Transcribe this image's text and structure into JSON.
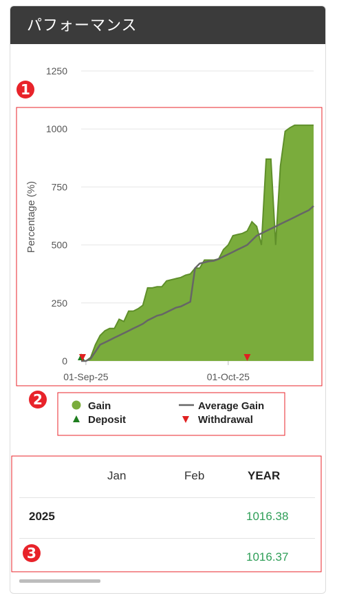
{
  "header": {
    "title": "パフォーマンス"
  },
  "colors": {
    "gain_fill": "#7aac3c",
    "gain_line": "#5f8f2a",
    "average_line": "#666666",
    "deposit_marker": "#1e7d1e",
    "withdrawal_marker": "#e02020",
    "annotation": "#e8232a",
    "positive_value": "#2e9e57",
    "header_bg": "#3b3b3b"
  },
  "chart_data": {
    "type": "area",
    "ylabel": "Percentage (%)",
    "ylim": [
      0,
      1250
    ],
    "yticks": [
      "0",
      "250",
      "500",
      "750",
      "1000",
      "1250"
    ],
    "xticks": [
      "01-Sep-25",
      "01-Oct-25"
    ],
    "x_range": [
      "2025-08-31",
      "2025-10-19"
    ],
    "grid": true,
    "legend_position": "bottom",
    "series": [
      {
        "name": "Gain",
        "style": "area",
        "x": [
          "2025-08-31",
          "2025-09-01",
          "2025-09-02",
          "2025-09-03",
          "2025-09-04",
          "2025-09-05",
          "2025-09-06",
          "2025-09-07",
          "2025-09-08",
          "2025-09-09",
          "2025-09-10",
          "2025-09-11",
          "2025-09-12",
          "2025-09-13",
          "2025-09-14",
          "2025-09-15",
          "2025-09-16",
          "2025-09-17",
          "2025-09-18",
          "2025-09-19",
          "2025-09-20",
          "2025-09-21",
          "2025-09-22",
          "2025-09-23",
          "2025-09-24",
          "2025-09-25",
          "2025-09-26",
          "2025-09-27",
          "2025-09-28",
          "2025-09-29",
          "2025-09-30",
          "2025-10-01",
          "2025-10-02",
          "2025-10-03",
          "2025-10-04",
          "2025-10-05",
          "2025-10-06",
          "2025-10-07",
          "2025-10-08",
          "2025-10-09",
          "2025-10-10",
          "2025-10-11",
          "2025-10-12",
          "2025-10-13",
          "2025-10-14",
          "2025-10-15",
          "2025-10-16",
          "2025-10-17",
          "2025-10-18",
          "2025-10-19"
        ],
        "values": [
          0,
          0,
          15,
          70,
          110,
          130,
          140,
          140,
          180,
          170,
          215,
          215,
          225,
          240,
          315,
          315,
          320,
          320,
          345,
          350,
          355,
          360,
          370,
          375,
          400,
          400,
          435,
          435,
          435,
          440,
          480,
          500,
          540,
          545,
          550,
          560,
          600,
          580,
          500,
          870,
          870,
          500,
          840,
          990,
          1005,
          1016,
          1016,
          1016,
          1016,
          1016
        ]
      },
      {
        "name": "Average Gain",
        "style": "line",
        "x": [
          "2025-08-31",
          "2025-09-01",
          "2025-09-02",
          "2025-09-03",
          "2025-09-04",
          "2025-09-05",
          "2025-09-06",
          "2025-09-07",
          "2025-09-08",
          "2025-09-09",
          "2025-09-10",
          "2025-09-11",
          "2025-09-12",
          "2025-09-13",
          "2025-09-14",
          "2025-09-15",
          "2025-09-16",
          "2025-09-17",
          "2025-09-18",
          "2025-09-19",
          "2025-09-20",
          "2025-09-21",
          "2025-09-22",
          "2025-09-23",
          "2025-09-24",
          "2025-09-25",
          "2025-09-26",
          "2025-09-27",
          "2025-09-28",
          "2025-09-29",
          "2025-09-30",
          "2025-10-01",
          "2025-10-02",
          "2025-10-03",
          "2025-10-04",
          "2025-10-05",
          "2025-10-06",
          "2025-10-07",
          "2025-10-08",
          "2025-10-09",
          "2025-10-10",
          "2025-10-11",
          "2025-10-12",
          "2025-10-13",
          "2025-10-14",
          "2025-10-15",
          "2025-10-16",
          "2025-10-17",
          "2025-10-18",
          "2025-10-19"
        ],
        "values": [
          0,
          0,
          10,
          40,
          70,
          80,
          90,
          100,
          110,
          120,
          130,
          140,
          150,
          160,
          175,
          185,
          195,
          200,
          210,
          220,
          230,
          235,
          245,
          255,
          400,
          420,
          425,
          430,
          432,
          440,
          450,
          460,
          470,
          480,
          490,
          500,
          520,
          540,
          550,
          560,
          570,
          580,
          590,
          600,
          610,
          620,
          630,
          640,
          650,
          668
        ]
      }
    ],
    "events": [
      {
        "name": "Deposit",
        "date": "2025-08-31",
        "marker": "triangle-up"
      },
      {
        "name": "Withdrawal",
        "date": "2025-08-31",
        "marker": "triangle-down"
      },
      {
        "name": "Withdrawal",
        "date": "2025-10-05",
        "marker": "triangle-down"
      }
    ],
    "legend": [
      {
        "label": "Gain",
        "symbol": "circle"
      },
      {
        "label": "Average Gain",
        "symbol": "line"
      },
      {
        "label": "Deposit",
        "symbol": "triangle-up"
      },
      {
        "label": "Withdrawal",
        "symbol": "triangle-down"
      }
    ]
  },
  "annotations": [
    "1",
    "2",
    "3"
  ],
  "table": {
    "headers": [
      "",
      "Jan",
      "Feb",
      "YEAR"
    ],
    "rows": [
      {
        "label": "2025",
        "year_value": "1016.38"
      },
      {
        "label": "",
        "year_value": "1016.37"
      }
    ]
  }
}
